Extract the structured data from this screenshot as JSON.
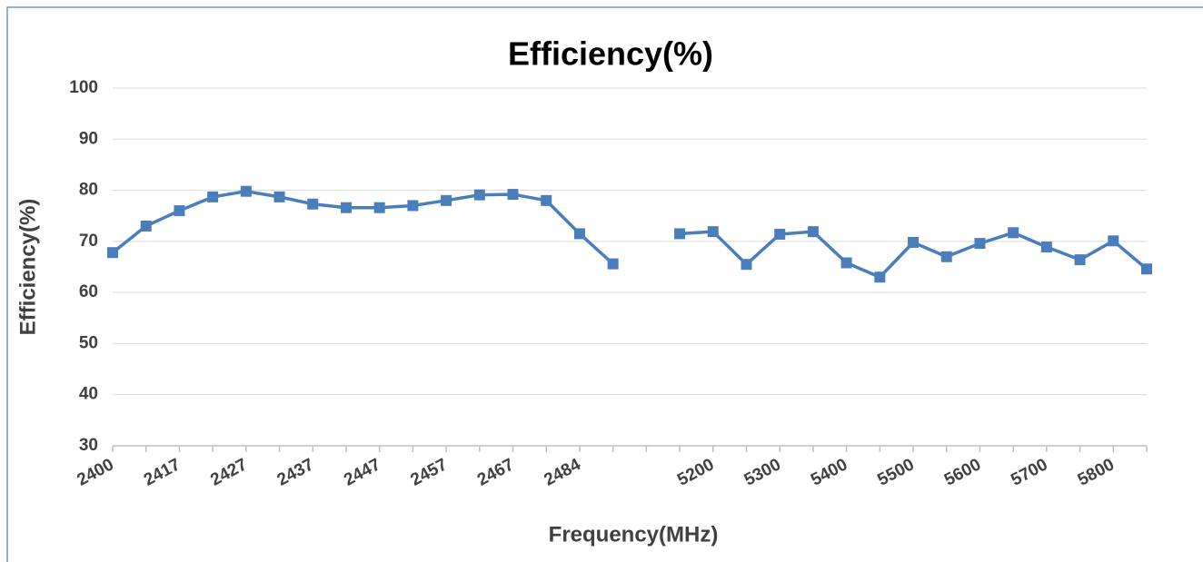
{
  "chart_data": {
    "type": "line",
    "title": "Efficiency(%)",
    "x_label": "Frequency(MHz)",
    "y_label": "Efficiency(%)",
    "categories": [
      "2400",
      null,
      "2417",
      null,
      "2427",
      null,
      "2437",
      null,
      "2447",
      null,
      "2457",
      null,
      "2467",
      null,
      "2484",
      null,
      null,
      null,
      "5200",
      null,
      "5300",
      null,
      "5400",
      null,
      "5500",
      null,
      "5600",
      null,
      "5700",
      null,
      "5800",
      null
    ],
    "series": [
      {
        "name": "Efficiency(%)",
        "color": "#4a7ebb",
        "values": [
          67.8,
          73,
          76,
          78.7,
          79.8,
          78.7,
          77.3,
          76.6,
          76.6,
          77,
          78,
          79.1,
          79.2,
          78,
          71.5,
          65.6,
          null,
          71.5,
          71.9,
          65.5,
          71.4,
          71.9,
          65.8,
          63,
          69.8,
          67,
          69.6,
          71.7,
          68.9,
          66.4,
          70.1,
          64.6
        ]
      }
    ],
    "ylim": [
      30,
      100
    ],
    "yticks": [
      30,
      40,
      50,
      60,
      70,
      80,
      90,
      100
    ],
    "grid": true
  }
}
